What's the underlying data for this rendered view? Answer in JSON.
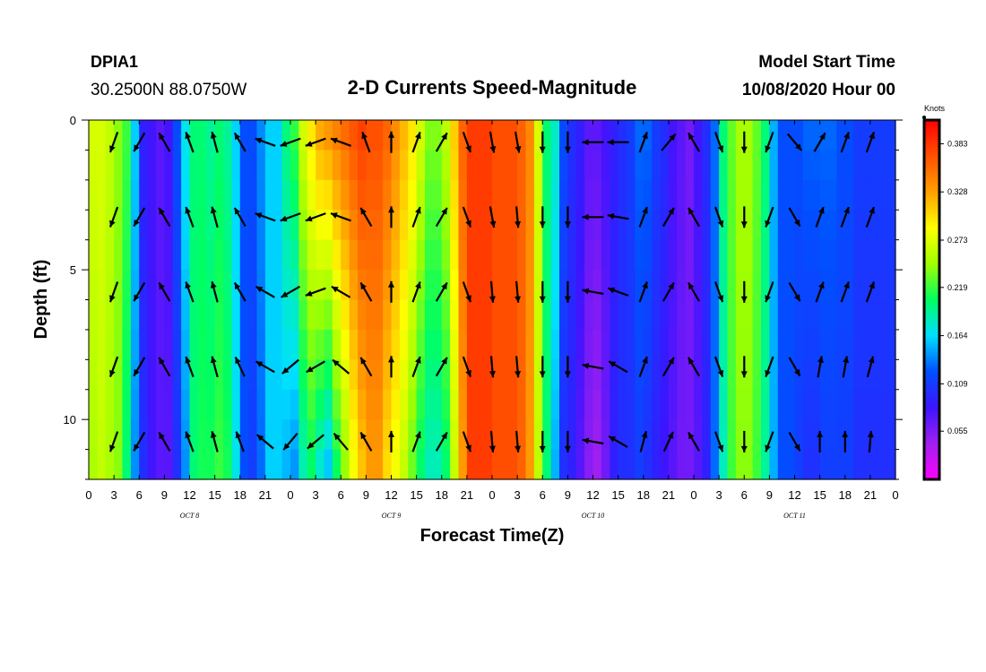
{
  "header": {
    "station": "DPIA1",
    "coords": "30.2500N 88.0750W",
    "title": "2-D Currents Speed-Magnitude",
    "model_label": "Model Start Time",
    "model_time": "10/08/2020 Hour 00"
  },
  "chart_data": {
    "type": "heatmap",
    "title": "2-D Currents Speed-Magnitude",
    "xlabel": "Forecast Time(Z)",
    "ylabel": "Depth (ft)",
    "x_ticks": [
      "0",
      "3",
      "6",
      "9",
      "12",
      "15",
      "18",
      "21",
      "0",
      "3",
      "6",
      "9",
      "12",
      "15",
      "18",
      "21",
      "0",
      "3",
      "6",
      "9",
      "12",
      "15",
      "18",
      "21",
      "0",
      "3",
      "6",
      "9",
      "12",
      "15",
      "18",
      "21",
      "0"
    ],
    "x_range_hours": [
      0,
      96
    ],
    "day_labels": [
      {
        "text": "OCT 8",
        "hour": 12
      },
      {
        "text": "OCT 9",
        "hour": 36
      },
      {
        "text": "OCT 10",
        "hour": 60
      },
      {
        "text": "OCT 11",
        "hour": 84
      }
    ],
    "y_ticks": [
      "0",
      "5",
      "10"
    ],
    "y_range": [
      0,
      12
    ],
    "y_inverted": true,
    "colorbar": {
      "unit": "Knots",
      "ticks": [
        "0.383",
        "0.328",
        "0.273",
        "0.219",
        "0.164",
        "0.109",
        "0.055"
      ],
      "tick_values": [
        0.383,
        0.328,
        0.273,
        0.219,
        0.164,
        0.109,
        0.055
      ],
      "range": [
        0.0,
        0.41
      ],
      "colors": [
        "#ff00ff",
        "#a020f0",
        "#3c14ff",
        "#0050ff",
        "#00e0ff",
        "#00ff60",
        "#a0ff00",
        "#ffff00",
        "#ffa000",
        "#ff5000",
        "#ff0000"
      ]
    },
    "speed_columns": {
      "hours": [
        0,
        1,
        2,
        3,
        4,
        5,
        6,
        7,
        8,
        9,
        10,
        11,
        12,
        13,
        14,
        15,
        16,
        17,
        18,
        19,
        20,
        21,
        22,
        23,
        24,
        25,
        26,
        27,
        28,
        29,
        30,
        31,
        32,
        33,
        34,
        35,
        36,
        37,
        38,
        39,
        40,
        41,
        42,
        43,
        44,
        45,
        46,
        47,
        48,
        49,
        50,
        51,
        52,
        53,
        54,
        55,
        56,
        57,
        58,
        59,
        60,
        61,
        62,
        63,
        64,
        65,
        66,
        67,
        68,
        69,
        70,
        71,
        72,
        73,
        74,
        75,
        76,
        77,
        78,
        79,
        80,
        81,
        82,
        83,
        84,
        85,
        86,
        87,
        88,
        89,
        90,
        91,
        92,
        93,
        94,
        95,
        96
      ],
      "surface": [
        0.27,
        0.27,
        0.26,
        0.24,
        0.22,
        0.16,
        0.09,
        0.08,
        0.07,
        0.08,
        0.12,
        0.17,
        0.2,
        0.2,
        0.19,
        0.2,
        0.19,
        0.16,
        0.12,
        0.12,
        0.14,
        0.16,
        0.16,
        0.2,
        0.22,
        0.27,
        0.3,
        0.33,
        0.34,
        0.35,
        0.36,
        0.37,
        0.38,
        0.37,
        0.37,
        0.36,
        0.34,
        0.32,
        0.3,
        0.27,
        0.24,
        0.24,
        0.26,
        0.31,
        0.36,
        0.38,
        0.38,
        0.38,
        0.37,
        0.37,
        0.37,
        0.36,
        0.34,
        0.27,
        0.2,
        0.18,
        0.12,
        0.1,
        0.09,
        0.07,
        0.07,
        0.08,
        0.09,
        0.1,
        0.11,
        0.13,
        0.13,
        0.11,
        0.1,
        0.08,
        0.07,
        0.06,
        0.08,
        0.1,
        0.13,
        0.2,
        0.23,
        0.25,
        0.25,
        0.23,
        0.2,
        0.15,
        0.12,
        0.12,
        0.12,
        0.13,
        0.13,
        0.13,
        0.13,
        0.12,
        0.12,
        0.11,
        0.11,
        0.11,
        0.11,
        0.11,
        0.11
      ],
      "bottom": [
        0.25,
        0.26,
        0.25,
        0.24,
        0.2,
        0.14,
        0.1,
        0.08,
        0.07,
        0.07,
        0.1,
        0.14,
        0.2,
        0.21,
        0.21,
        0.22,
        0.21,
        0.17,
        0.12,
        0.11,
        0.13,
        0.16,
        0.16,
        0.15,
        0.14,
        0.18,
        0.2,
        0.17,
        0.15,
        0.2,
        0.24,
        0.28,
        0.31,
        0.33,
        0.33,
        0.3,
        0.28,
        0.26,
        0.23,
        0.2,
        0.18,
        0.18,
        0.2,
        0.26,
        0.33,
        0.38,
        0.38,
        0.38,
        0.37,
        0.37,
        0.37,
        0.36,
        0.33,
        0.26,
        0.2,
        0.15,
        0.1,
        0.09,
        0.07,
        0.05,
        0.04,
        0.06,
        0.09,
        0.1,
        0.1,
        0.11,
        0.1,
        0.09,
        0.08,
        0.07,
        0.06,
        0.06,
        0.07,
        0.09,
        0.13,
        0.18,
        0.22,
        0.24,
        0.24,
        0.22,
        0.19,
        0.15,
        0.12,
        0.12,
        0.11,
        0.1,
        0.1,
        0.11,
        0.11,
        0.11,
        0.11,
        0.1,
        0.1,
        0.1,
        0.1,
        0.1,
        0.1
      ]
    },
    "vectors": {
      "hours": [
        3,
        6,
        9,
        12,
        15,
        18,
        21,
        24,
        27,
        30,
        33,
        36,
        39,
        42,
        45,
        48,
        51,
        54,
        57,
        60,
        63,
        66,
        69,
        72,
        75,
        78,
        81,
        84,
        87,
        90,
        93
      ],
      "depths": [
        0.5,
        3,
        5.5,
        8,
        10.5
      ],
      "angles_deg": [
        [
          200,
          210,
          -30,
          -20,
          -15,
          -30,
          -70,
          -110,
          -110,
          -70,
          -20,
          0,
          20,
          30,
          160,
          170,
          170,
          180,
          180,
          -90,
          -90,
          20,
          40,
          -30,
          160,
          180,
          200,
          140,
          30,
          20,
          20
        ],
        [
          200,
          210,
          -30,
          -20,
          -15,
          -30,
          -70,
          -110,
          -110,
          -70,
          -30,
          0,
          20,
          30,
          160,
          170,
          175,
          180,
          180,
          -90,
          -80,
          20,
          30,
          -30,
          160,
          180,
          200,
          150,
          20,
          20,
          20
        ],
        [
          200,
          210,
          -30,
          -20,
          -15,
          -30,
          -60,
          -120,
          -110,
          -60,
          -30,
          0,
          20,
          30,
          160,
          175,
          175,
          180,
          180,
          -80,
          -70,
          20,
          30,
          -30,
          160,
          180,
          200,
          150,
          20,
          20,
          20
        ],
        [
          200,
          210,
          -30,
          -20,
          -15,
          -25,
          -60,
          -130,
          -120,
          -50,
          -30,
          0,
          20,
          30,
          160,
          175,
          175,
          180,
          180,
          -80,
          -60,
          20,
          30,
          -30,
          160,
          180,
          200,
          150,
          10,
          10,
          15
        ],
        [
          200,
          210,
          -30,
          -20,
          -15,
          -20,
          -50,
          -140,
          -130,
          -40,
          -30,
          0,
          20,
          30,
          160,
          175,
          175,
          180,
          180,
          -80,
          -60,
          15,
          25,
          -30,
          160,
          180,
          200,
          150,
          0,
          0,
          5
        ]
      ]
    }
  }
}
